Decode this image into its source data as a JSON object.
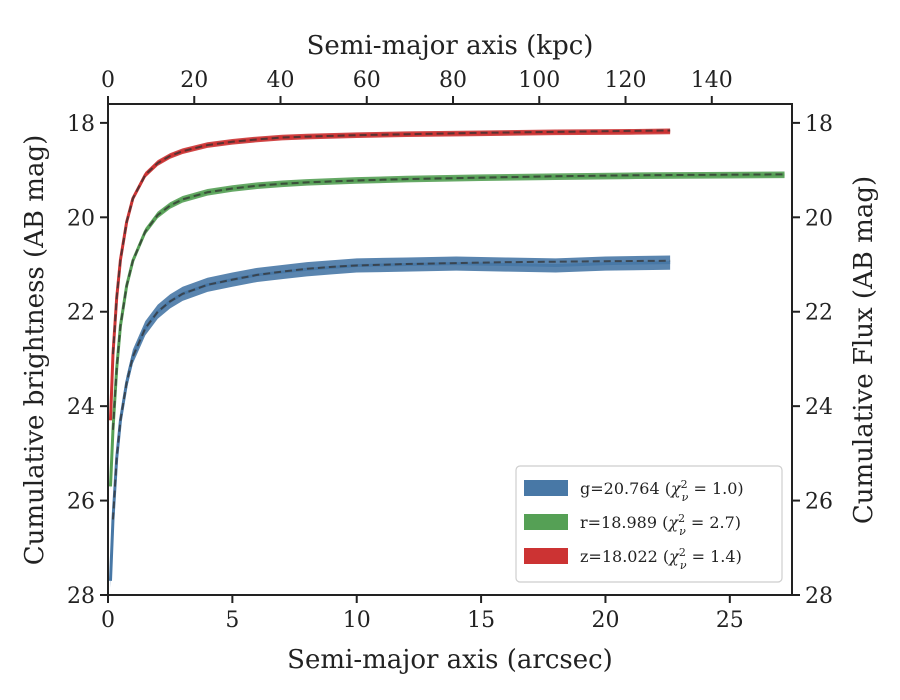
{
  "chart_data": {
    "type": "line",
    "xlabel": "Semi-major axis (arcsec)",
    "ylabel": "Cumulative brightness (AB mag)",
    "top_xlabel": "Semi-major axis (kpc)",
    "right_ylabel": "Cumulative Flux (AB mag)",
    "xlim": [
      0,
      27.5
    ],
    "ylim": [
      28,
      17.6
    ],
    "top_xlim": [
      0,
      158.6
    ],
    "y_inverted": true,
    "xticks": [
      "0",
      "5",
      "10",
      "15",
      "20",
      "25"
    ],
    "yticks": [
      "18",
      "20",
      "22",
      "24",
      "26",
      "28"
    ],
    "top_xticks": [
      "0",
      "20",
      "40",
      "60",
      "80",
      "100",
      "120",
      "140"
    ],
    "legend_position": "lower-right",
    "series": [
      {
        "name": "g=20.764 (χ²ᵥ = 1.0)",
        "label_main": "g=20.764 (",
        "label_sym": "χ",
        "label_sup": "2",
        "label_sub": "ν",
        "label_val": " = 1.0)",
        "color": "#4878a6",
        "band_width": 0.15,
        "x": [
          0.1,
          0.2,
          0.35,
          0.5,
          0.75,
          1.0,
          1.5,
          2.0,
          2.5,
          3.0,
          4.0,
          5.0,
          6.0,
          7.0,
          8.0,
          9.0,
          10.0,
          12.0,
          14.0,
          16.0,
          18.0,
          20.0,
          22.6
        ],
        "y": [
          27.7,
          26.4,
          25.1,
          24.3,
          23.5,
          22.95,
          22.35,
          22.0,
          21.78,
          21.62,
          21.43,
          21.32,
          21.22,
          21.16,
          21.1,
          21.06,
          21.02,
          21.0,
          20.98,
          21.0,
          21.02,
          20.98,
          20.96
        ],
        "fit_x": [
          0.2,
          0.35,
          0.5,
          0.75,
          1.0,
          1.5,
          2.0,
          2.5,
          3.0,
          4.0,
          5.0,
          6.0,
          7.0,
          8.0,
          9.0,
          10.0,
          12.0,
          14.0,
          16.0,
          18.0,
          20.0,
          22.6
        ],
        "fit_y": [
          26.4,
          25.1,
          24.3,
          23.5,
          22.95,
          22.35,
          22.0,
          21.78,
          21.62,
          21.43,
          21.32,
          21.22,
          21.15,
          21.09,
          21.05,
          21.02,
          20.99,
          20.97,
          20.95,
          20.94,
          20.93,
          20.92
        ]
      },
      {
        "name": "r=18.989 (χ²ᵥ = 2.7)",
        "label_main": "r=18.989 (",
        "label_sym": "χ",
        "label_sup": "2",
        "label_sub": "ν",
        "label_val": " = 2.7)",
        "color": "#55a055",
        "band_width": 0.07,
        "x": [
          0.1,
          0.2,
          0.35,
          0.5,
          0.75,
          1.0,
          1.5,
          2.0,
          2.5,
          3.0,
          4.0,
          5.0,
          6.0,
          7.0,
          8.0,
          10.0,
          12.0,
          15.0,
          18.0,
          21.0,
          24.0,
          27.2
        ],
        "y": [
          25.7,
          24.5,
          23.2,
          22.3,
          21.45,
          20.92,
          20.3,
          19.95,
          19.75,
          19.62,
          19.47,
          19.39,
          19.33,
          19.29,
          19.26,
          19.22,
          19.19,
          19.16,
          19.14,
          19.12,
          19.11,
          19.1
        ],
        "fit_x": [
          0.2,
          0.35,
          0.5,
          0.75,
          1.0,
          1.5,
          2.0,
          2.5,
          3.0,
          4.0,
          5.0,
          6.0,
          7.0,
          8.0,
          10.0,
          12.0,
          15.0,
          18.0,
          21.0,
          24.0,
          27.2
        ],
        "fit_y": [
          24.5,
          23.2,
          22.3,
          21.45,
          20.92,
          20.3,
          19.95,
          19.75,
          19.62,
          19.47,
          19.39,
          19.33,
          19.29,
          19.26,
          19.22,
          19.19,
          19.16,
          19.13,
          19.11,
          19.1,
          19.09
        ]
      },
      {
        "name": "z=18.022 (χ²ᵥ = 1.4)",
        "label_main": "z=18.022 (",
        "label_sym": "χ",
        "label_sup": "2",
        "label_sub": "ν",
        "label_val": " = 1.4)",
        "color": "#cc3333",
        "band_width": 0.06,
        "x": [
          0.1,
          0.2,
          0.35,
          0.5,
          0.75,
          1.0,
          1.5,
          2.0,
          2.5,
          3.0,
          4.0,
          5.0,
          6.0,
          7.0,
          8.0,
          10.0,
          12.0,
          15.0,
          18.0,
          21.0,
          22.6
        ],
        "y": [
          24.3,
          22.9,
          21.7,
          20.9,
          20.1,
          19.6,
          19.1,
          18.85,
          18.7,
          18.6,
          18.47,
          18.4,
          18.35,
          18.31,
          18.29,
          18.26,
          18.24,
          18.22,
          18.2,
          18.19,
          18.18
        ],
        "fit_x": [
          0.2,
          0.35,
          0.5,
          0.75,
          1.0,
          1.5,
          2.0,
          2.5,
          3.0,
          4.0,
          5.0,
          6.0,
          7.0,
          8.0,
          10.0,
          12.0,
          15.0,
          18.0,
          21.0,
          22.6
        ],
        "fit_y": [
          22.9,
          21.7,
          20.9,
          20.1,
          19.6,
          19.1,
          18.85,
          18.7,
          18.6,
          18.47,
          18.4,
          18.35,
          18.31,
          18.29,
          18.26,
          18.24,
          18.21,
          18.19,
          18.17,
          18.16
        ]
      }
    ]
  }
}
